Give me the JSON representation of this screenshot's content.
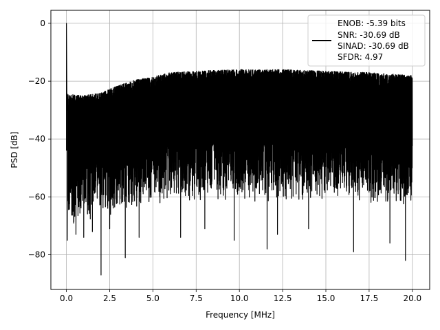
{
  "chart_data": {
    "type": "line",
    "xlabel": "Frequency [MHz]",
    "ylabel": "PSD [dB]",
    "xlim": [
      -0.9,
      21.0
    ],
    "ylim": [
      -92.0,
      4.5
    ],
    "xticks": [
      0.0,
      2.5,
      5.0,
      7.5,
      10.0,
      12.5,
      15.0,
      17.5,
      20.0
    ],
    "xtick_labels": [
      "0.0",
      "2.5",
      "5.0",
      "7.5",
      "10.0",
      "12.5",
      "15.0",
      "17.5",
      "20.0"
    ],
    "yticks": [
      0,
      -20,
      -40,
      -60,
      -80
    ],
    "ytick_labels": [
      "0",
      "−20",
      "−40",
      "−60",
      "−80"
    ],
    "grid": true,
    "legend_position": "top-right",
    "series": [
      {
        "color": "#000000",
        "x_start": 0.0,
        "x_end": 20.0,
        "peak": {
          "x": 0.0,
          "y": 0.0
        },
        "upper_envelope": [
          [
            0.1,
            -24.5
          ],
          [
            1.0,
            -25.0
          ],
          [
            2.0,
            -24.0
          ],
          [
            3.0,
            -21.5
          ],
          [
            4.0,
            -19.5
          ],
          [
            5.0,
            -18.5
          ],
          [
            6.0,
            -17.0
          ],
          [
            7.5,
            -16.5
          ],
          [
            10.0,
            -16.0
          ],
          [
            12.5,
            -16.0
          ],
          [
            15.0,
            -16.5
          ],
          [
            17.5,
            -17.0
          ],
          [
            20.0,
            -18.0
          ]
        ],
        "dense_floor": [
          [
            0.1,
            -64
          ],
          [
            2.0,
            -62
          ],
          [
            5.0,
            -57
          ],
          [
            10.0,
            -56
          ],
          [
            15.0,
            -56
          ],
          [
            20.0,
            -58
          ]
        ],
        "notable_dips": [
          [
            0.05,
            -75.0
          ],
          [
            0.55,
            -73.0
          ],
          [
            1.0,
            -74.0
          ],
          [
            1.5,
            -72.0
          ],
          [
            2.0,
            -87.0
          ],
          [
            2.5,
            -71.0
          ],
          [
            3.4,
            -81.0
          ],
          [
            4.2,
            -74.0
          ],
          [
            6.6,
            -74.0
          ],
          [
            8.0,
            -71.0
          ],
          [
            9.7,
            -75.0
          ],
          [
            11.6,
            -78.0
          ],
          [
            12.2,
            -73.0
          ],
          [
            14.0,
            -71.0
          ],
          [
            16.6,
            -79.0
          ],
          [
            18.7,
            -76.0
          ],
          [
            19.6,
            -82.0
          ]
        ]
      }
    ],
    "legend_lines": [
      "ENOB: -5.39 bits",
      "SNR: -30.69 dB",
      "SINAD: -30.69 dB",
      "SFDR: 4.97"
    ]
  }
}
